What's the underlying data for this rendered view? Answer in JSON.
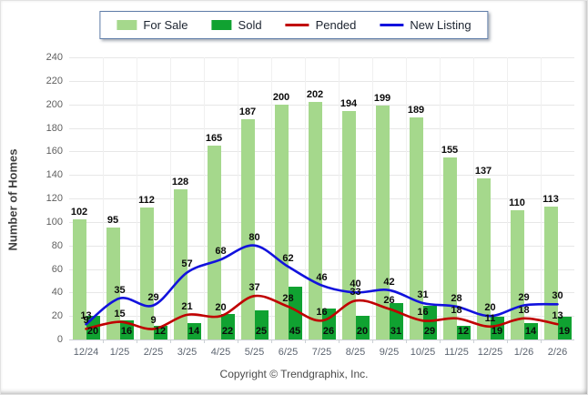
{
  "legend": {
    "items": [
      {
        "label": "For Sale",
        "swatch": "box",
        "color": "#a5d88c"
      },
      {
        "label": "Sold",
        "swatch": "box",
        "color": "#10a231"
      },
      {
        "label": "Pended",
        "swatch": "line",
        "color": "#c00000"
      },
      {
        "label": "New Listing",
        "swatch": "line",
        "color": "#1212dd"
      }
    ]
  },
  "chart_data": {
    "type": "bar",
    "title": "",
    "xlabel": "",
    "ylabel": "Number of Homes",
    "ylim": [
      0,
      240
    ],
    "ytick_step": 20,
    "grid": true,
    "legend_position": "top",
    "categories": [
      "12/24",
      "1/25",
      "2/25",
      "3/25",
      "4/25",
      "5/25",
      "6/25",
      "7/25",
      "8/25",
      "9/25",
      "10/25",
      "11/25",
      "12/25",
      "1/26",
      "2/26"
    ],
    "series": [
      {
        "name": "For Sale",
        "type": "bar",
        "color": "#a5d88c",
        "values": [
          102,
          95,
          112,
          128,
          165,
          187,
          200,
          202,
          194,
          199,
          189,
          155,
          137,
          110,
          113
        ]
      },
      {
        "name": "Sold",
        "type": "bar",
        "color": "#10a231",
        "values": [
          20,
          16,
          12,
          14,
          22,
          25,
          45,
          26,
          20,
          31,
          29,
          12,
          19,
          14,
          19
        ]
      },
      {
        "name": "Pended",
        "type": "line",
        "color": "#c00000",
        "values": [
          9,
          15,
          9,
          21,
          20,
          37,
          28,
          16,
          33,
          26,
          16,
          18,
          11,
          18,
          13
        ]
      },
      {
        "name": "New Listing",
        "type": "line",
        "color": "#1212dd",
        "values": [
          13,
          35,
          29,
          57,
          68,
          80,
          62,
          46,
          40,
          42,
          31,
          28,
          20,
          29,
          30
        ]
      }
    ]
  },
  "footer": {
    "copyright": "Copyright © Trendgraphix, Inc."
  }
}
